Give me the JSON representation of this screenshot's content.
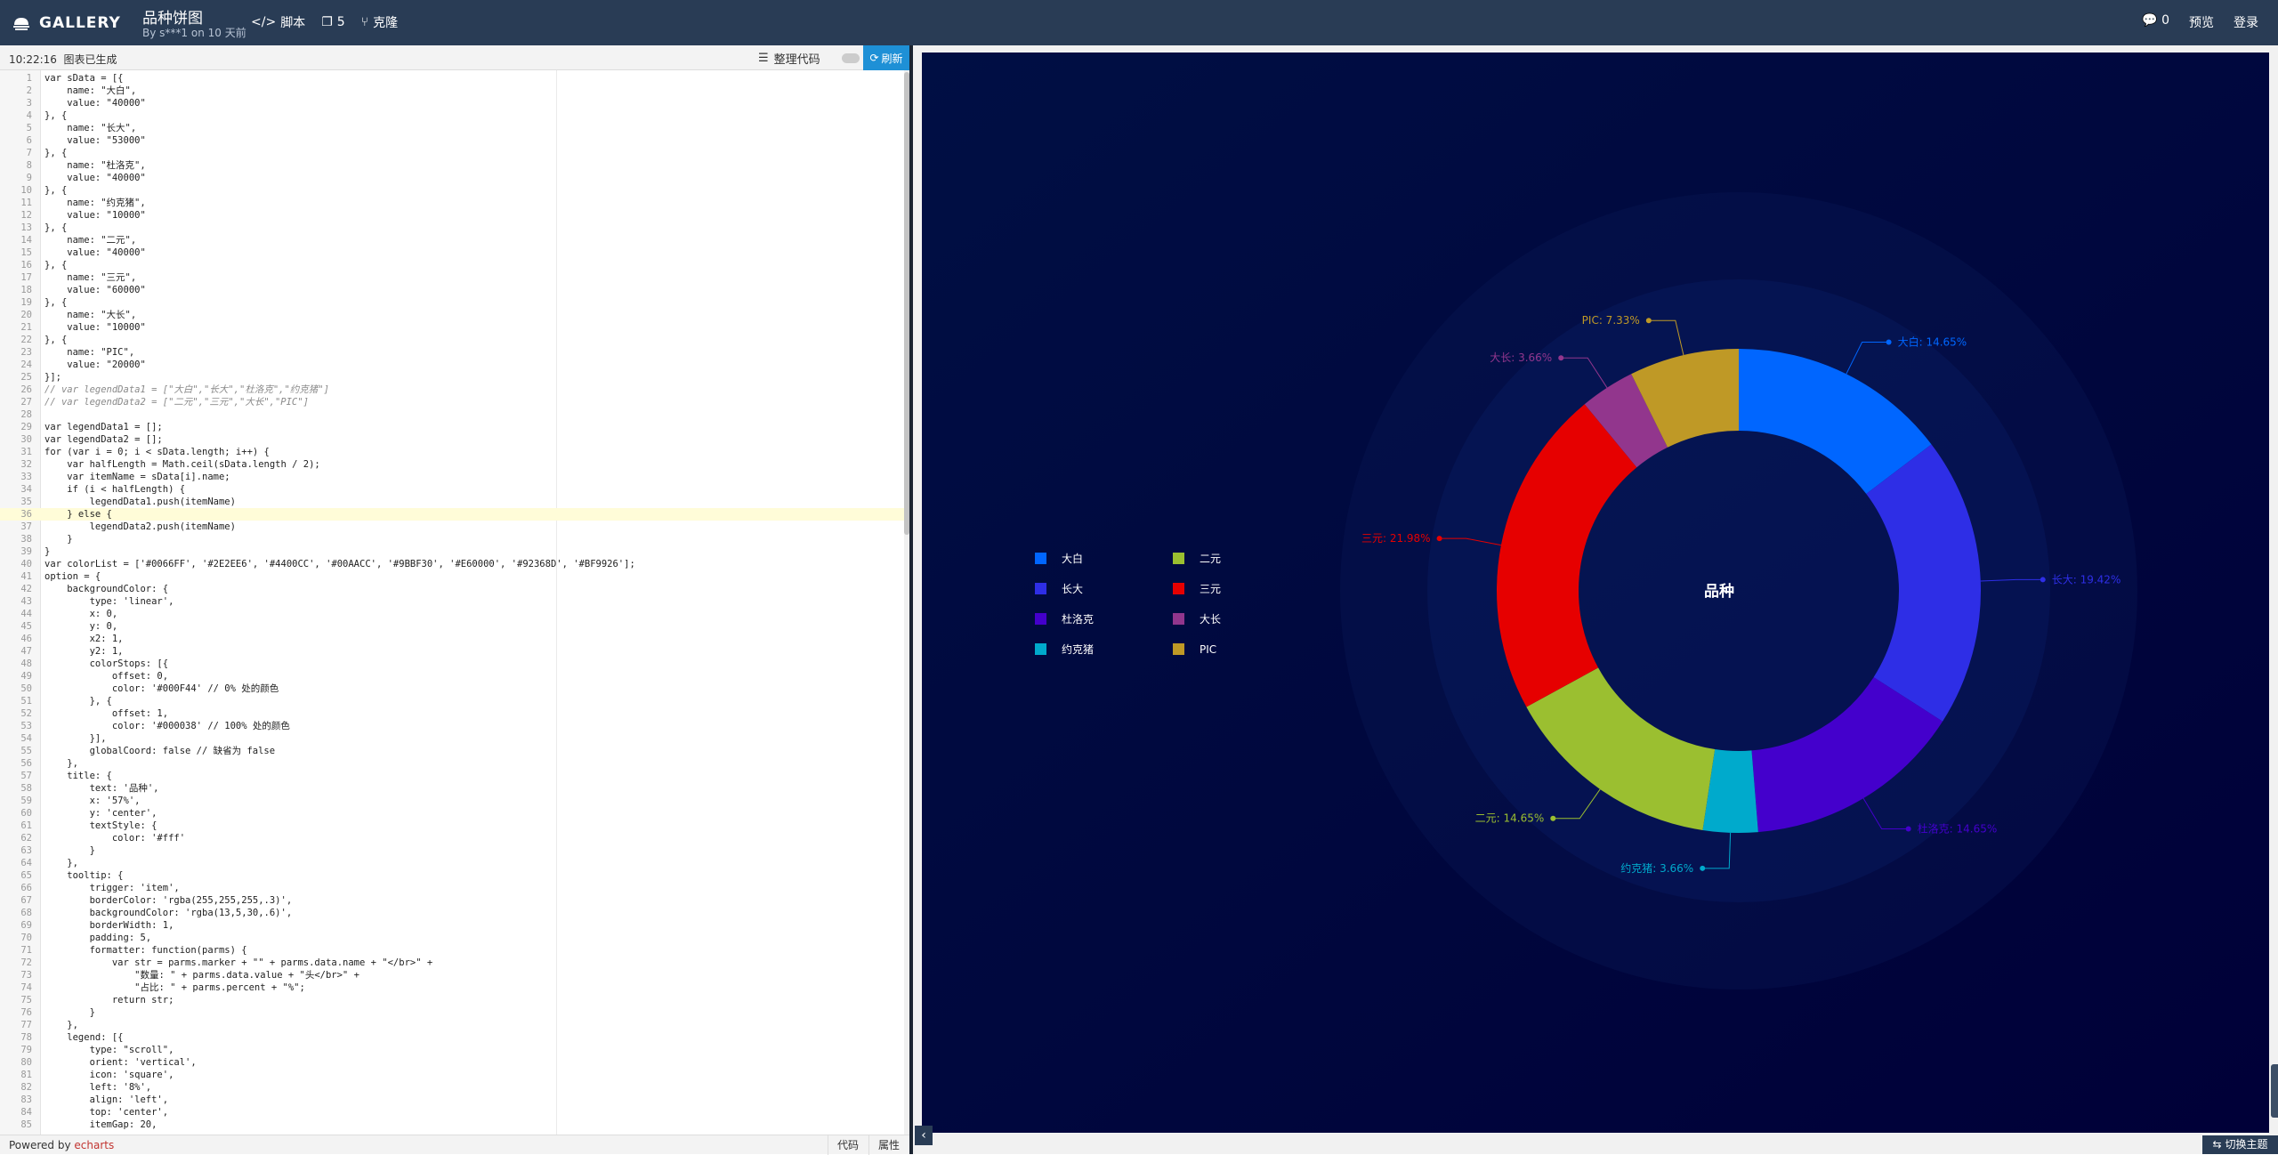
{
  "header": {
    "logo_text": "GALLERY",
    "chart_title": "品种饼图",
    "byline": "By s***1 on 10 天前",
    "actions": [
      {
        "icon": "code-icon",
        "label": "脚本"
      },
      {
        "icon": "fork-icon",
        "label": "5"
      },
      {
        "icon": "clone-icon",
        "label": "克隆"
      }
    ],
    "comments_count": "0",
    "preview_label": "预览",
    "login_label": "登录"
  },
  "editor": {
    "log_time": "10:22:16",
    "log_message": "图表已生成",
    "format_label": "整理代码",
    "refresh_label": "刷新",
    "active_line": 36,
    "lines": [
      "var sData = [{",
      "    name: \"大白\",",
      "    value: \"40000\"",
      "}, {",
      "    name: \"长大\",",
      "    value: \"53000\"",
      "}, {",
      "    name: \"杜洛克\",",
      "    value: \"40000\"",
      "}, {",
      "    name: \"约克猪\",",
      "    value: \"10000\"",
      "}, {",
      "    name: \"二元\",",
      "    value: \"40000\"",
      "}, {",
      "    name: \"三元\",",
      "    value: \"60000\"",
      "}, {",
      "    name: \"大长\",",
      "    value: \"10000\"",
      "}, {",
      "    name: \"PIC\",",
      "    value: \"20000\"",
      "}];",
      "// var legendData1 = [\"大白\",\"长大\",\"杜洛克\",\"约克猪\"]",
      "// var legendData2 = [\"二元\",\"三元\",\"大长\",\"PIC\"]",
      "",
      "var legendData1 = [];",
      "var legendData2 = [];",
      "for (var i = 0; i < sData.length; i++) {",
      "    var halfLength = Math.ceil(sData.length / 2);",
      "    var itemName = sData[i].name;",
      "    if (i < halfLength) {",
      "        legendData1.push(itemName)",
      "    } else {",
      "        legendData2.push(itemName)",
      "    }",
      "}",
      "var colorList = ['#0066FF', '#2E2EE6', '#4400CC', '#00AACC', '#9BBF30', '#E60000', '#92368D', '#BF9926'];",
      "option = {",
      "    backgroundColor: {",
      "        type: 'linear',",
      "        x: 0,",
      "        y: 0,",
      "        x2: 1,",
      "        y2: 1,",
      "        colorStops: [{",
      "            offset: 0,",
      "            color: '#000F44' // 0% 处的颜色",
      "        }, {",
      "            offset: 1,",
      "            color: '#000038' // 100% 处的颜色",
      "        }],",
      "        globalCoord: false // 缺省为 false",
      "    },",
      "    title: {",
      "        text: '品种',",
      "        x: '57%',",
      "        y: 'center',",
      "        textStyle: {",
      "            color: '#fff'",
      "        }",
      "    },",
      "    tooltip: {",
      "        trigger: 'item',",
      "        borderColor: 'rgba(255,255,255,.3)',",
      "        backgroundColor: 'rgba(13,5,30,.6)',",
      "        borderWidth: 1,",
      "        padding: 5,",
      "        formatter: function(parms) {",
      "            var str = parms.marker + \"\" + parms.data.name + \"</br>\" +",
      "                \"数量: \" + parms.data.value + \"头</br>\" +",
      "                \"占比: \" + parms.percent + \"%\";",
      "            return str;",
      "        }",
      "    },",
      "    legend: [{",
      "        type: \"scroll\",",
      "        orient: 'vertical',",
      "        icon: 'square',",
      "        left: '8%',",
      "        align: 'left',",
      "        top: 'center',",
      "        itemGap: 20,"
    ]
  },
  "footer": {
    "powered_prefix": "Powered by",
    "powered_link": "echarts",
    "tab_code": "代码",
    "tab_props": "属性",
    "theme_label": "切换主题"
  },
  "chart_data": {
    "type": "pie",
    "title": "品种",
    "categories": [
      "大白",
      "长大",
      "杜洛克",
      "约克猪",
      "二元",
      "三元",
      "大长",
      "PIC"
    ],
    "values": [
      40000,
      53000,
      40000,
      10000,
      40000,
      60000,
      10000,
      20000
    ],
    "labels": [
      "大白: 14.65%",
      "长大: 19.42%",
      "杜洛克: 14.65%",
      "约克猪: 3.66%",
      "二元: 14.65%",
      "三元: 21.98%",
      "大长: 3.66%",
      "PIC: 7.33%"
    ],
    "colors": [
      "#0066FF",
      "#2E2EE6",
      "#4400CC",
      "#00AACC",
      "#9BBF30",
      "#E60000",
      "#92368D",
      "#BF9926"
    ],
    "legend_columns": [
      [
        "大白",
        "长大",
        "杜洛克",
        "约克猪"
      ],
      [
        "二元",
        "三元",
        "大长",
        "PIC"
      ]
    ],
    "legend_placement": "left-center",
    "background": [
      "#000F44",
      "#000038"
    ]
  }
}
